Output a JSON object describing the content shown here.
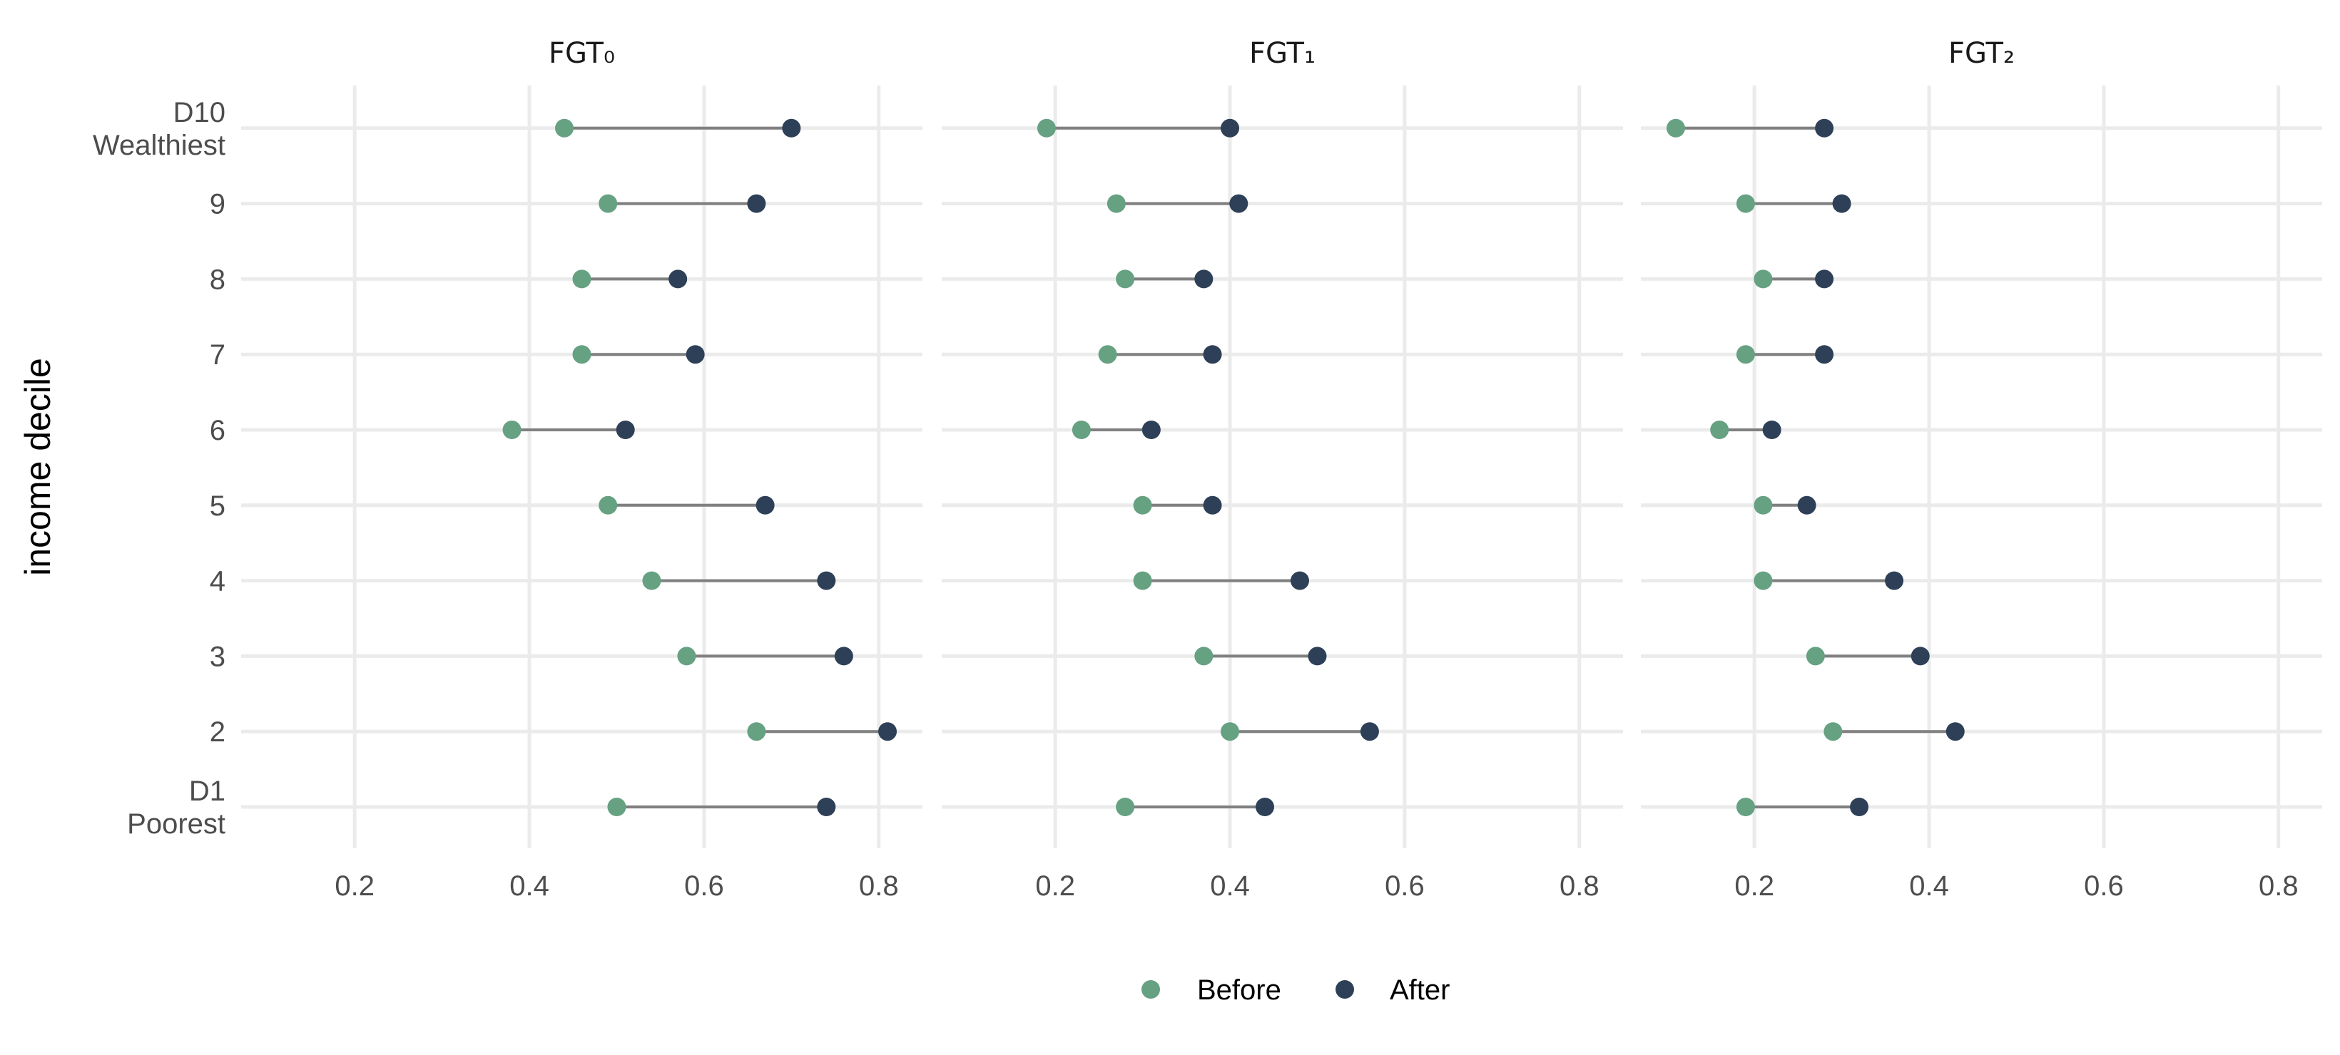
{
  "chart_data": {
    "type": "dumbbell",
    "ylabel": "income decile",
    "xlabel": "",
    "xlim": [
      0.07,
      0.85
    ],
    "x_ticks": [
      "0.2",
      "0.4",
      "0.6",
      "0.8"
    ],
    "x_tick_values": [
      0.2,
      0.4,
      0.6,
      0.8
    ],
    "categories": [
      "D1\nPoorest",
      "2",
      "3",
      "4",
      "5",
      "6",
      "7",
      "8",
      "9",
      "D10\nWealthiest"
    ],
    "category_labels": [
      {
        "lines": [
          "D1",
          "Poorest"
        ]
      },
      {
        "lines": [
          "2"
        ]
      },
      {
        "lines": [
          "3"
        ]
      },
      {
        "lines": [
          "4"
        ]
      },
      {
        "lines": [
          "5"
        ]
      },
      {
        "lines": [
          "6"
        ]
      },
      {
        "lines": [
          "7"
        ]
      },
      {
        "lines": [
          "8"
        ]
      },
      {
        "lines": [
          "9"
        ]
      },
      {
        "lines": [
          "D10",
          "Wealthiest"
        ]
      }
    ],
    "grid": true,
    "legend_position": "bottom",
    "legend": [
      {
        "name": "Before",
        "color": "#66a182"
      },
      {
        "name": "After",
        "color": "#2e4057"
      }
    ],
    "segment_color": "#808080",
    "panels": [
      {
        "title": "FGT₀",
        "before": [
          0.5,
          0.66,
          0.58,
          0.54,
          0.49,
          0.38,
          0.46,
          0.46,
          0.49,
          0.44
        ],
        "after": [
          0.74,
          0.81,
          0.76,
          0.74,
          0.67,
          0.51,
          0.59,
          0.57,
          0.66,
          0.7
        ]
      },
      {
        "title": "FGT₁",
        "before": [
          0.28,
          0.4,
          0.37,
          0.3,
          0.3,
          0.23,
          0.26,
          0.28,
          0.27,
          0.19
        ],
        "after": [
          0.44,
          0.56,
          0.5,
          0.48,
          0.38,
          0.31,
          0.38,
          0.37,
          0.41,
          0.4
        ]
      },
      {
        "title": "FGT₂",
        "before": [
          0.19,
          0.29,
          0.27,
          0.21,
          0.21,
          0.16,
          0.19,
          0.21,
          0.19,
          0.11
        ],
        "after": [
          0.32,
          0.43,
          0.39,
          0.36,
          0.26,
          0.22,
          0.28,
          0.28,
          0.3,
          0.28
        ]
      }
    ]
  }
}
